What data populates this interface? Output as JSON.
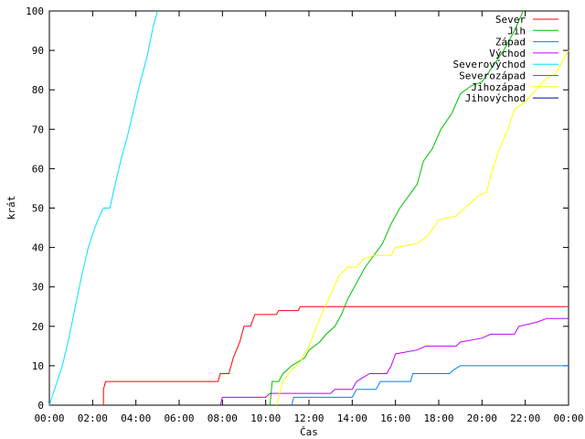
{
  "chart_data": {
    "type": "line",
    "xlabel": "Čas",
    "ylabel": "krát",
    "xlim": [
      0,
      24
    ],
    "ylim": [
      0,
      100
    ],
    "xticks": [
      {
        "v": 0,
        "label": "00:00"
      },
      {
        "v": 2,
        "label": "02:00"
      },
      {
        "v": 4,
        "label": "04:00"
      },
      {
        "v": 6,
        "label": "06:00"
      },
      {
        "v": 8,
        "label": "08:00"
      },
      {
        "v": 10,
        "label": "10:00"
      },
      {
        "v": 12,
        "label": "12:00"
      },
      {
        "v": 14,
        "label": "14:00"
      },
      {
        "v": 16,
        "label": "16:00"
      },
      {
        "v": 18,
        "label": "18:00"
      },
      {
        "v": 20,
        "label": "20:00"
      },
      {
        "v": 22,
        "label": "22:00"
      },
      {
        "v": 24,
        "label": "00:00"
      }
    ],
    "yticks": [
      0,
      10,
      20,
      30,
      40,
      50,
      60,
      70,
      80,
      90,
      100
    ],
    "grid": false,
    "legend_position": "top-right",
    "series": [
      {
        "name": "Sever",
        "color": "#ff0000",
        "points": [
          [
            2.5,
            0
          ],
          [
            2.5,
            4
          ],
          [
            2.6,
            6
          ],
          [
            7.8,
            6
          ],
          [
            7.9,
            8
          ],
          [
            8.3,
            8
          ],
          [
            8.5,
            12
          ],
          [
            8.8,
            16
          ],
          [
            9.0,
            20
          ],
          [
            9.3,
            20
          ],
          [
            9.5,
            23
          ],
          [
            10.5,
            23
          ],
          [
            10.6,
            24
          ],
          [
            11.5,
            24
          ],
          [
            11.6,
            25
          ],
          [
            24,
            25
          ]
        ]
      },
      {
        "name": "Jih",
        "color": "#00c000",
        "points": [
          [
            10.2,
            0
          ],
          [
            10.3,
            6
          ],
          [
            10.6,
            6
          ],
          [
            10.8,
            8
          ],
          [
            11.2,
            10
          ],
          [
            11.8,
            12
          ],
          [
            12.0,
            14
          ],
          [
            12.5,
            16
          ],
          [
            12.8,
            18
          ],
          [
            13.2,
            20
          ],
          [
            13.5,
            23
          ],
          [
            13.8,
            27
          ],
          [
            14.2,
            31
          ],
          [
            14.6,
            35
          ],
          [
            15.0,
            38
          ],
          [
            15.4,
            41
          ],
          [
            15.8,
            46
          ],
          [
            16.2,
            50
          ],
          [
            16.6,
            53
          ],
          [
            17.0,
            56
          ],
          [
            17.3,
            62
          ],
          [
            17.7,
            65
          ],
          [
            18.1,
            70
          ],
          [
            18.6,
            74
          ],
          [
            19.0,
            79
          ],
          [
            19.5,
            81
          ],
          [
            20.0,
            82
          ],
          [
            20.5,
            86
          ],
          [
            21.0,
            90
          ],
          [
            21.5,
            95
          ],
          [
            21.9,
            100
          ]
        ]
      },
      {
        "name": "Západ",
        "color": "#0080ff",
        "points": [
          [
            11.2,
            0
          ],
          [
            11.3,
            2
          ],
          [
            14.0,
            2
          ],
          [
            14.2,
            4
          ],
          [
            15.1,
            4
          ],
          [
            15.3,
            6
          ],
          [
            16.7,
            6
          ],
          [
            16.8,
            8
          ],
          [
            18.5,
            8
          ],
          [
            18.7,
            9
          ],
          [
            19.0,
            10
          ],
          [
            24,
            10
          ]
        ]
      },
      {
        "name": "Východ",
        "color": "#c000ff",
        "points": [
          [
            7.9,
            0
          ],
          [
            8.0,
            2
          ],
          [
            10.0,
            2
          ],
          [
            10.2,
            3
          ],
          [
            13.0,
            3
          ],
          [
            13.2,
            4
          ],
          [
            14.0,
            4
          ],
          [
            14.2,
            6
          ],
          [
            14.5,
            7
          ],
          [
            14.8,
            8
          ],
          [
            15.6,
            8
          ],
          [
            15.8,
            10
          ],
          [
            16.0,
            13
          ],
          [
            17.0,
            14
          ],
          [
            17.4,
            15
          ],
          [
            18.8,
            15
          ],
          [
            19.0,
            16
          ],
          [
            20.0,
            17
          ],
          [
            20.4,
            18
          ],
          [
            21.5,
            18
          ],
          [
            21.7,
            20
          ],
          [
            22.5,
            21
          ],
          [
            23.0,
            22
          ],
          [
            24,
            22
          ]
        ]
      },
      {
        "name": "Severovýchod",
        "color": "#00e0ff",
        "points": [
          [
            0,
            0
          ],
          [
            0.3,
            5
          ],
          [
            0.6,
            10
          ],
          [
            0.9,
            17
          ],
          [
            1.2,
            25
          ],
          [
            1.5,
            33
          ],
          [
            1.8,
            40
          ],
          [
            2.1,
            45
          ],
          [
            2.4,
            49
          ],
          [
            2.5,
            50
          ],
          [
            2.8,
            50
          ],
          [
            3.0,
            55
          ],
          [
            3.3,
            62
          ],
          [
            3.6,
            68
          ],
          [
            3.9,
            75
          ],
          [
            4.2,
            82
          ],
          [
            4.5,
            88
          ],
          [
            4.8,
            96
          ],
          [
            5.0,
            100
          ]
        ]
      },
      {
        "name": "Severozápad",
        "color": "#a06000",
        "points": []
      },
      {
        "name": "Jihozápad",
        "color": "#ffff00",
        "points": [
          [
            10.5,
            0
          ],
          [
            10.8,
            6
          ],
          [
            11.2,
            9
          ],
          [
            11.6,
            11
          ],
          [
            12.0,
            15
          ],
          [
            12.5,
            22
          ],
          [
            13.0,
            28
          ],
          [
            13.4,
            33
          ],
          [
            13.8,
            35
          ],
          [
            14.2,
            35
          ],
          [
            14.5,
            37
          ],
          [
            15.0,
            38
          ],
          [
            15.8,
            38
          ],
          [
            16.0,
            40
          ],
          [
            17.0,
            41
          ],
          [
            17.5,
            43
          ],
          [
            18.0,
            47
          ],
          [
            18.8,
            48
          ],
          [
            19.2,
            50
          ],
          [
            19.8,
            53
          ],
          [
            20.2,
            54
          ],
          [
            20.5,
            60
          ],
          [
            20.8,
            65
          ],
          [
            21.2,
            70
          ],
          [
            21.5,
            75
          ],
          [
            22.0,
            77
          ],
          [
            22.5,
            80
          ],
          [
            23.0,
            83
          ],
          [
            23.4,
            84
          ],
          [
            23.6,
            86
          ],
          [
            24,
            90
          ]
        ]
      },
      {
        "name": "Jihovýchod",
        "color": "#0000a0",
        "points": []
      }
    ]
  }
}
